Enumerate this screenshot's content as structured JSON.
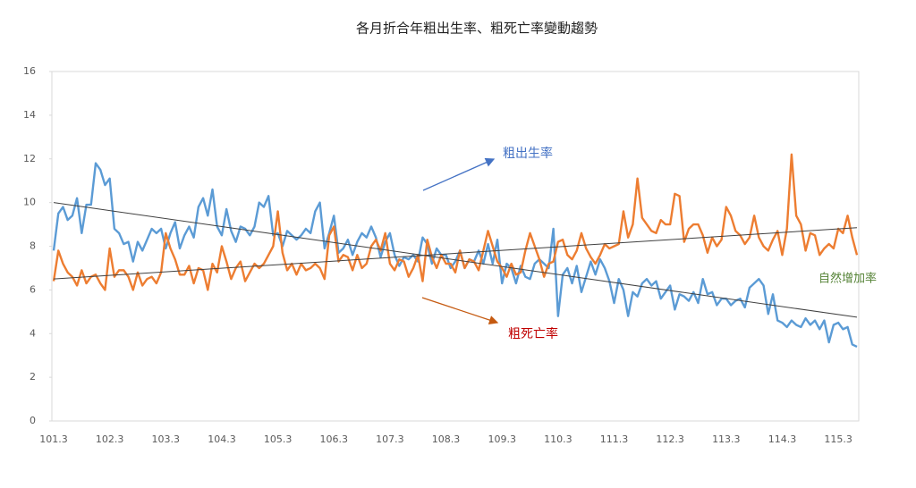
{
  "chart_data": {
    "type": "line",
    "title": "各月折合年粗出生率、粗死亡率變動趨勢",
    "categories": [
      "101.3",
      null,
      null,
      null,
      null,
      null,
      null,
      null,
      null,
      null,
      null,
      null,
      "102.3",
      null,
      null,
      null,
      null,
      null,
      null,
      null,
      null,
      null,
      null,
      null,
      "103.3",
      null,
      null,
      null,
      null,
      null,
      null,
      null,
      null,
      null,
      null,
      null,
      "104.3",
      null,
      null,
      null,
      null,
      null,
      null,
      null,
      null,
      null,
      null,
      null,
      "105.3",
      null,
      null,
      null,
      null,
      null,
      null,
      null,
      null,
      null,
      null,
      null,
      "106.3",
      null,
      null,
      null,
      null,
      null,
      null,
      null,
      null,
      null,
      null,
      null,
      "107.3",
      null,
      null,
      null,
      null,
      null,
      null,
      null,
      null,
      null,
      null,
      null,
      "108.3",
      null,
      null,
      null,
      null,
      null,
      null,
      null,
      null,
      null,
      null,
      null,
      "109.3",
      null,
      null,
      null,
      null,
      null,
      null,
      null,
      null,
      null,
      null,
      null,
      "110.3",
      null,
      null,
      null,
      null,
      null,
      null,
      null,
      null,
      null,
      null,
      null,
      "111.3",
      null,
      null,
      null,
      null,
      null,
      null,
      null,
      null,
      null,
      null,
      null,
      "112.3",
      null,
      null,
      null,
      null,
      null,
      null,
      null,
      null,
      null,
      null,
      null,
      "113.3",
      null,
      null,
      null,
      null,
      null,
      null,
      null,
      null,
      null,
      null,
      null,
      "114.3",
      null,
      null,
      null,
      null,
      null,
      null,
      null,
      null,
      null,
      null,
      null,
      "115.3",
      null,
      null,
      null,
      null
    ],
    "series": [
      {
        "name": "粗出生率",
        "color": "#5b9bd5",
        "values": [
          7.8,
          9.5,
          9.8,
          9.2,
          9.4,
          10.2,
          8.6,
          9.9,
          9.9,
          11.8,
          11.5,
          10.8,
          11.1,
          8.8,
          8.6,
          8.1,
          8.2,
          7.3,
          8.2,
          7.8,
          8.3,
          8.8,
          8.6,
          8.8,
          7.9,
          8.6,
          9.1,
          7.9,
          8.5,
          8.9,
          8.4,
          9.8,
          10.2,
          9.4,
          10.6,
          8.9,
          8.5,
          9.7,
          8.7,
          8.2,
          8.9,
          8.8,
          8.5,
          8.9,
          10.0,
          9.8,
          10.3,
          8.5,
          8.6,
          8.0,
          8.7,
          8.5,
          8.3,
          8.5,
          8.8,
          8.6,
          9.6,
          10.0,
          7.9,
          8.6,
          9.4,
          7.7,
          7.9,
          8.3,
          7.6,
          8.2,
          8.6,
          8.4,
          8.9,
          8.4,
          7.5,
          8.2,
          8.6,
          7.6,
          7.1,
          7.5,
          7.4,
          7.6,
          7.3,
          8.4,
          8.1,
          7.2,
          7.9,
          7.6,
          7.6,
          7.0,
          7.3,
          7.8,
          7.0,
          7.4,
          7.3,
          7.8,
          7.2,
          8.1,
          7.2,
          8.3,
          6.3,
          7.2,
          7.0,
          6.3,
          7.1,
          6.6,
          6.5,
          7.2,
          7.4,
          7.2,
          7.0,
          8.8,
          4.8,
          6.7,
          7.0,
          6.3,
          7.1,
          5.9,
          6.6,
          7.3,
          6.7,
          7.4,
          7.0,
          6.4,
          5.4,
          6.5,
          6.0,
          4.8,
          5.9,
          5.7,
          6.3,
          6.5,
          6.2,
          6.4,
          5.6,
          5.9,
          6.2,
          5.1,
          5.8,
          5.7,
          5.5,
          5.9,
          5.4,
          6.5,
          5.8,
          5.9,
          5.3,
          5.6,
          5.6,
          5.3,
          5.5,
          5.6,
          5.2,
          6.1,
          6.3,
          6.5,
          6.2,
          4.9,
          5.8,
          4.6,
          4.5,
          4.3,
          4.6,
          4.4,
          4.3,
          4.7,
          4.4,
          4.6,
          4.2,
          4.6,
          3.6,
          4.4,
          4.5,
          4.2,
          4.3,
          3.5,
          3.4
        ]
      },
      {
        "name": "粗死亡率",
        "color": "#ed7d31",
        "values": [
          6.4,
          7.8,
          7.2,
          6.8,
          6.6,
          6.2,
          6.9,
          6.3,
          6.6,
          6.7,
          6.3,
          6.0,
          7.9,
          6.6,
          6.9,
          6.9,
          6.6,
          6.0,
          6.8,
          6.2,
          6.5,
          6.6,
          6.3,
          6.8,
          8.6,
          7.9,
          7.4,
          6.7,
          6.7,
          7.1,
          6.3,
          7.0,
          6.9,
          6.0,
          7.2,
          6.8,
          8.0,
          7.3,
          6.5,
          7.0,
          7.3,
          6.4,
          6.8,
          7.2,
          7.0,
          7.2,
          7.6,
          8.0,
          9.6,
          7.7,
          6.9,
          7.2,
          6.7,
          7.2,
          6.9,
          7.0,
          7.2,
          7.0,
          6.5,
          8.5,
          8.9,
          7.3,
          7.6,
          7.5,
          6.9,
          7.6,
          7.0,
          7.2,
          8.0,
          8.3,
          7.8,
          8.6,
          7.2,
          6.9,
          7.4,
          7.3,
          6.6,
          7.0,
          7.6,
          6.4,
          8.3,
          7.5,
          7.0,
          7.6,
          7.2,
          7.2,
          6.8,
          7.8,
          7.0,
          7.4,
          7.3,
          6.9,
          7.8,
          8.7,
          8.0,
          7.3,
          7.0,
          6.6,
          7.2,
          6.7,
          6.8,
          7.8,
          8.6,
          8.0,
          7.4,
          6.6,
          7.2,
          7.3,
          8.2,
          8.3,
          7.6,
          7.4,
          7.8,
          8.6,
          7.9,
          7.5,
          7.2,
          7.6,
          8.1,
          7.9,
          8.0,
          8.1,
          9.6,
          8.4,
          9.0,
          11.1,
          9.3,
          9.0,
          8.7,
          8.6,
          9.2,
          9.0,
          9.0,
          10.4,
          10.3,
          8.2,
          8.8,
          9.0,
          9.0,
          8.5,
          7.7,
          8.4,
          8.0,
          8.3,
          9.8,
          9.4,
          8.7,
          8.5,
          8.1,
          8.4,
          9.4,
          8.4,
          8.0,
          7.8,
          8.3,
          8.7,
          7.6,
          8.8,
          12.2,
          9.4,
          9.0,
          7.8,
          8.6,
          8.5,
          7.6,
          7.9,
          8.1,
          7.9,
          8.8,
          8.6,
          9.4,
          8.4,
          7.6
        ]
      }
    ],
    "trendlines": [
      {
        "color": "#404040",
        "values": [
          10.0,
          4.75
        ]
      },
      {
        "color": "#404040",
        "values": [
          6.5,
          8.85
        ]
      }
    ],
    "annotation": "自然增加率",
    "ylim": [
      0,
      16
    ],
    "yticks": [
      0,
      2,
      4,
      6,
      8,
      10,
      12,
      14,
      16
    ],
    "grid": false
  }
}
